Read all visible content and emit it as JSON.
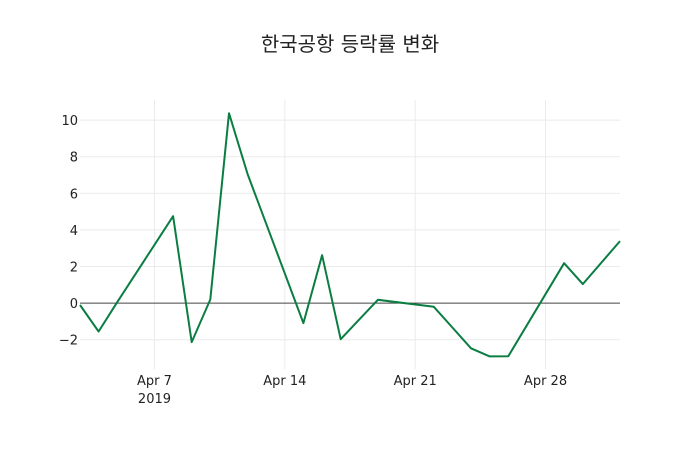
{
  "chart_data": {
    "type": "line",
    "title": "한국공항 등락률 변화",
    "xlabel": "",
    "ylabel": "",
    "x": [
      "2019-04-03",
      "2019-04-04",
      "2019-04-05",
      "2019-04-08",
      "2019-04-09",
      "2019-04-10",
      "2019-04-11",
      "2019-04-12",
      "2019-04-15",
      "2019-04-16",
      "2019-04-17",
      "2019-04-18",
      "2019-04-19",
      "2019-04-22",
      "2019-04-23",
      "2019-04-24",
      "2019-04-25",
      "2019-04-26",
      "2019-04-29",
      "2019-04-30",
      "2019-05-02"
    ],
    "series": [
      {
        "name": "등락률",
        "color": "#0a7d42",
        "values": [
          -0.1,
          -1.55,
          0.05,
          4.75,
          -2.13,
          0.2,
          10.38,
          7.05,
          -1.09,
          2.62,
          -1.97,
          -0.89,
          0.18,
          -0.2,
          -1.33,
          -2.47,
          -2.91,
          -2.9,
          2.18,
          1.04,
          3.39
        ]
      }
    ],
    "xticks": [
      {
        "date": "2019-04-07",
        "label": "Apr 7",
        "sublabel": "2019"
      },
      {
        "date": "2019-04-14",
        "label": "Apr 14",
        "sublabel": ""
      },
      {
        "date": "2019-04-21",
        "label": "Apr 21",
        "sublabel": ""
      },
      {
        "date": "2019-04-28",
        "label": "Apr 28",
        "sublabel": ""
      }
    ],
    "yticks": [
      -2,
      0,
      2,
      4,
      6,
      8,
      10
    ],
    "ytick_labels": [
      "−2",
      "0",
      "2",
      "4",
      "6",
      "8",
      "10"
    ],
    "xlim": [
      "2019-04-03",
      "2019-05-02"
    ],
    "ylim": [
      -3.6,
      11.1
    ],
    "grid": true,
    "zeroline": true,
    "legend": "none"
  }
}
